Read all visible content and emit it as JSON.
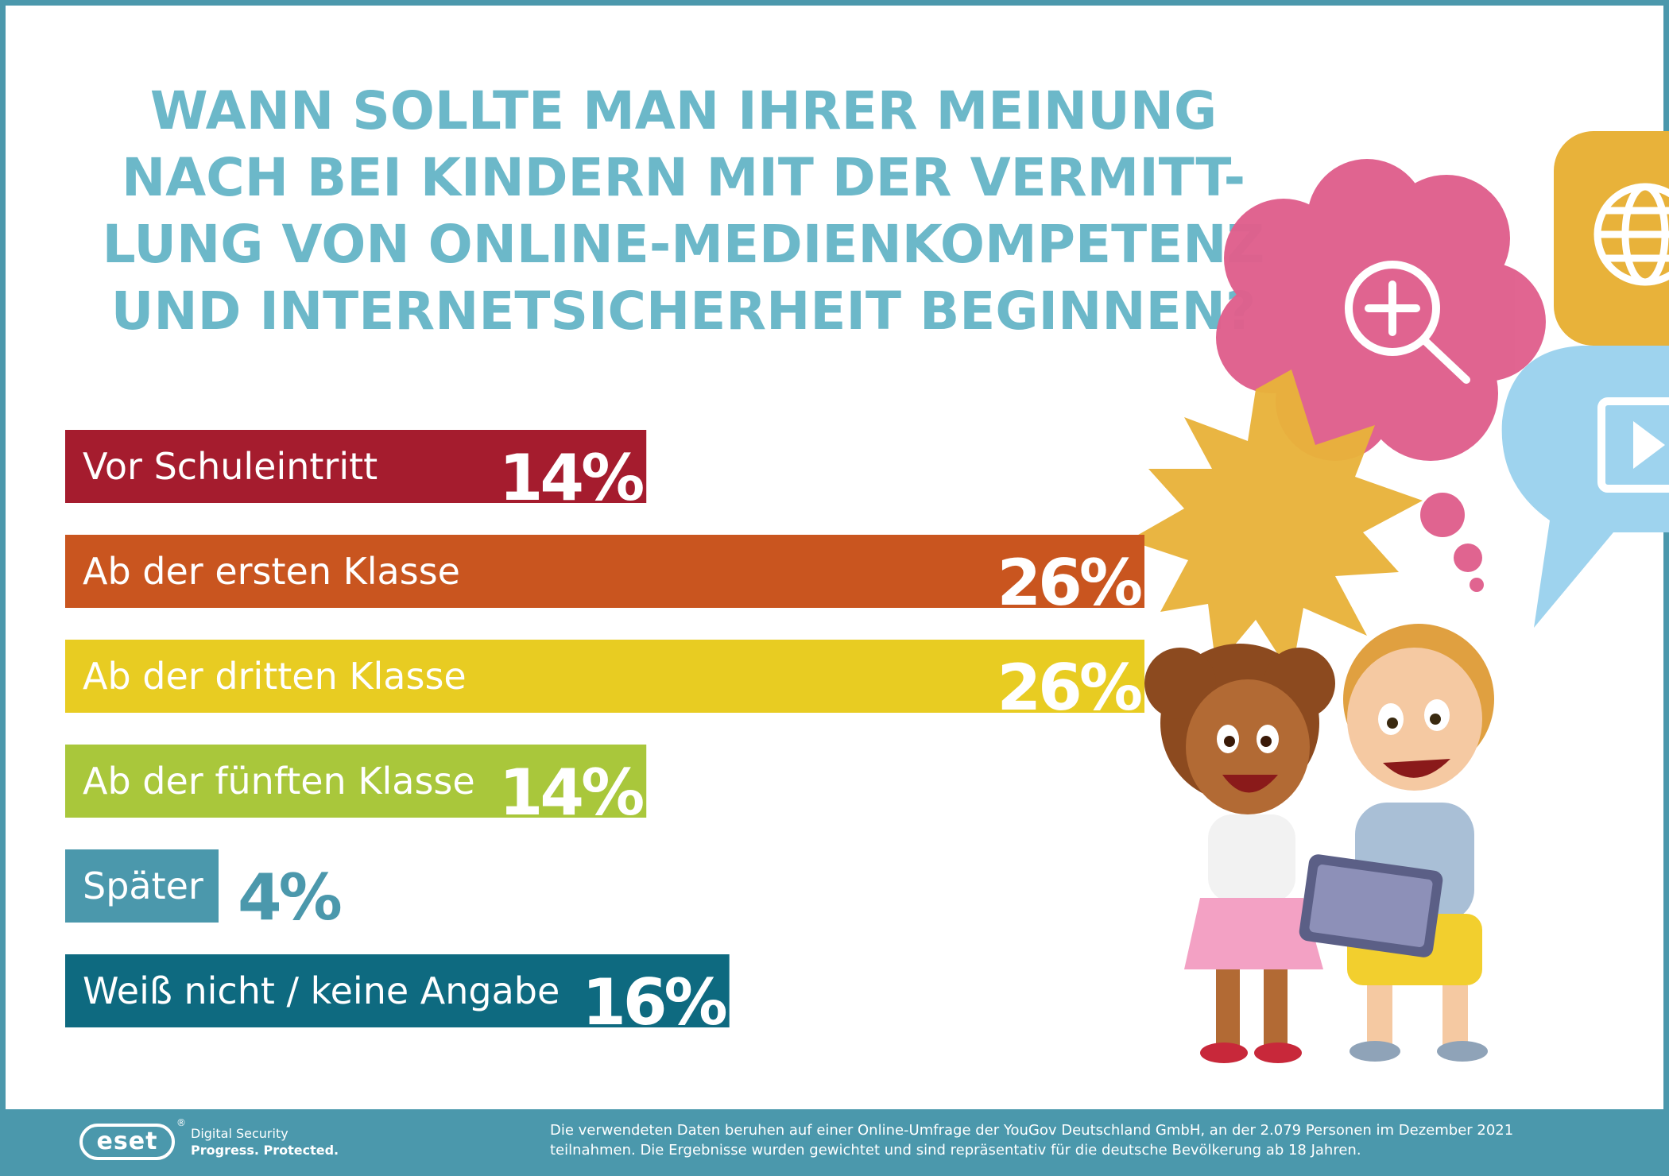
{
  "title_lines": [
    "WANN SOLLTE MAN IHRER MEINUNG",
    "NACH BEI KINDERN MIT DER VERMITT-",
    "LUNG VON ONLINE-MEDIENKOMPETENZ",
    "UND INTERNETSICHERHEIT BEGINNEN?"
  ],
  "chart_data": {
    "type": "bar",
    "orientation": "horizontal",
    "title": "WANN SOLLTE MAN IHRER MEINUNG NACH BEI KINDERN MIT DER VERMITTLUNG VON ONLINE-MEDIENKOMPETENZ UND INTERNETSICHERHEIT BEGINNEN?",
    "categories": [
      "Vor Schuleintritt",
      "Ab der ersten Klasse",
      "Ab der dritten Klasse",
      "Ab der fünften Klasse",
      "Später",
      "Weiß nicht / keine Angabe"
    ],
    "values": [
      14,
      26,
      26,
      14,
      4,
      16
    ],
    "value_labels": [
      "14%",
      "26%",
      "26%",
      "14%",
      "4%",
      "16%"
    ],
    "unit": "%",
    "colors": [
      "#a51c2e",
      "#c9551f",
      "#e8cc22",
      "#a9c73b",
      "#4b98ac",
      "#0e6a80"
    ],
    "xlim": [
      0,
      26
    ],
    "grid": false,
    "legend": "none"
  },
  "footer": {
    "logo": "eset",
    "tagline_1": "Digital Security",
    "tagline_2": "Progress. Protected.",
    "source_lines": [
      "Die verwendeten Daten beruhen auf einer Online-Umfrage der YouGov Deutschland GmbH, an der 2.079 Personen im Dezember 2021",
      "teilnahmen. Die Ergebnisse wurden gewichtet und sind repräsentativ für die deutsche Bevölkerung ab 18 Jahren."
    ]
  },
  "colors": {
    "frame": "#4b98ac",
    "title": "#6cb8c9",
    "cloud_pink": "#e0608d",
    "burst_yellow": "#e8b23a",
    "bubble_blue": "#9ed3ee"
  },
  "icons": [
    "magnifier-plus-icon",
    "globe-icon",
    "play-icon"
  ]
}
